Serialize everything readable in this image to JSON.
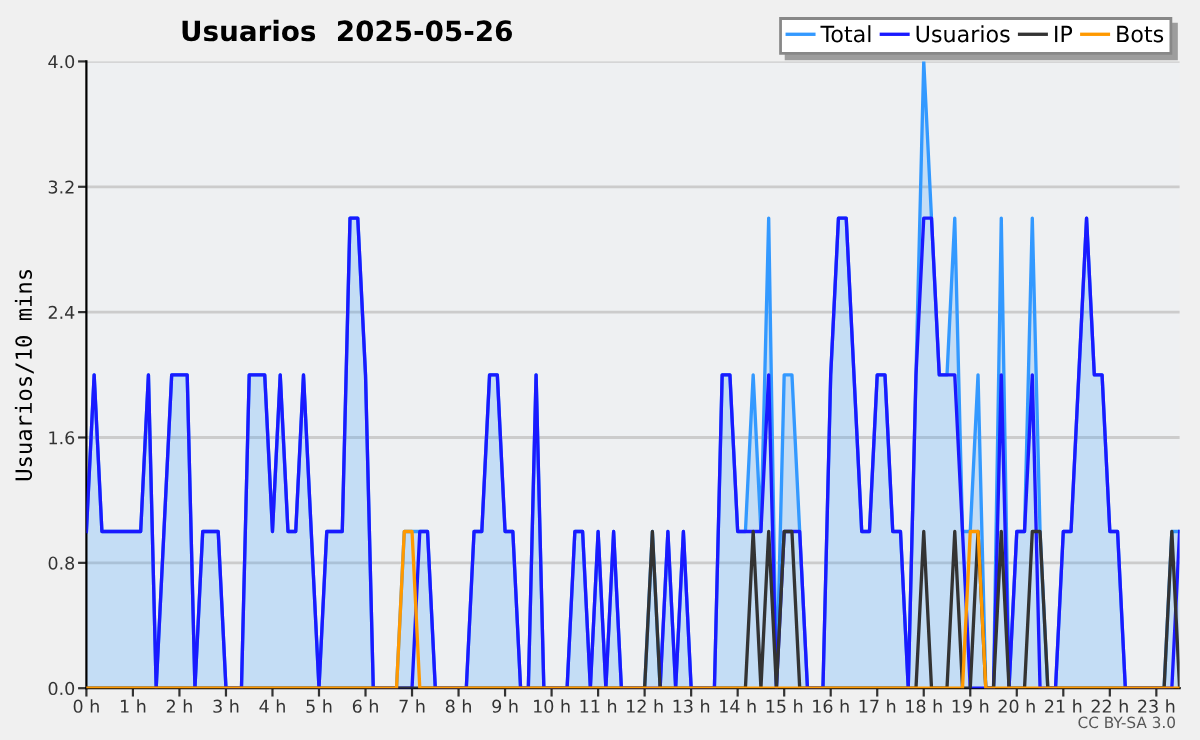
{
  "chart_data": {
    "type": "line",
    "title": "Usuarios  2025-05-26",
    "ylabel": "Usuarios/10 mins",
    "x": [
      0,
      0.1667,
      0.3333,
      0.5,
      0.6667,
      0.8333,
      1,
      1.1667,
      1.3333,
      1.5,
      1.6667,
      1.8333,
      2,
      2.1667,
      2.3333,
      2.5,
      2.6667,
      2.8333,
      3,
      3.1667,
      3.3333,
      3.5,
      3.6667,
      3.8333,
      4,
      4.1667,
      4.3333,
      4.5,
      4.6667,
      4.8333,
      5,
      5.1667,
      5.3333,
      5.5,
      5.6667,
      5.8333,
      6,
      6.1667,
      6.3333,
      6.5,
      6.6667,
      6.8333,
      7,
      7.1667,
      7.3333,
      7.5,
      7.6667,
      7.8333,
      8,
      8.1667,
      8.3333,
      8.5,
      8.6667,
      8.8333,
      9,
      9.1667,
      9.3333,
      9.5,
      9.6667,
      9.8333,
      10,
      10.1667,
      10.3333,
      10.5,
      10.6667,
      10.8333,
      11,
      11.1667,
      11.3333,
      11.5,
      11.6667,
      11.8333,
      12,
      12.1667,
      12.3333,
      12.5,
      12.6667,
      12.8333,
      13,
      13.1667,
      13.3333,
      13.5,
      13.6667,
      13.8333,
      14,
      14.1667,
      14.3333,
      14.5,
      14.6667,
      14.8333,
      15,
      15.1667,
      15.3333,
      15.5,
      15.6667,
      15.8333,
      16,
      16.1667,
      16.3333,
      16.5,
      16.6667,
      16.8333,
      17,
      17.1667,
      17.3333,
      17.5,
      17.6667,
      17.8333,
      18,
      18.1667,
      18.3333,
      18.5,
      18.6667,
      18.8333,
      19,
      19.1667,
      19.3333,
      19.5,
      19.6667,
      19.8333,
      20,
      20.1667,
      20.3333,
      20.5,
      20.6667,
      20.8333,
      21,
      21.1667,
      21.3333,
      21.5,
      21.6667,
      21.8333,
      22,
      22.1667,
      22.3333,
      22.5,
      22.6667,
      22.8333,
      23,
      23.1667,
      23.3333,
      23.5
    ],
    "series": [
      {
        "name": "Total",
        "type": "area",
        "color": "#3399ff",
        "values": [
          1,
          2,
          1,
          1,
          1,
          1,
          1,
          1,
          2,
          0,
          1,
          2,
          2,
          2,
          0,
          1,
          1,
          1,
          0,
          0,
          0,
          2,
          2,
          2,
          1,
          2,
          1,
          1,
          2,
          1,
          0,
          1,
          1,
          1,
          3,
          3,
          2,
          0,
          0,
          0,
          0,
          1,
          1,
          1,
          1,
          0,
          0,
          0,
          0,
          0,
          1,
          1,
          2,
          2,
          1,
          1,
          0,
          0,
          2,
          0,
          0,
          0,
          0,
          1,
          1,
          0,
          1,
          0,
          1,
          0,
          0,
          0,
          0,
          1,
          0,
          1,
          0,
          1,
          0,
          0,
          0,
          0,
          2,
          2,
          1,
          1,
          2,
          1,
          3,
          0,
          2,
          2,
          1,
          0,
          0,
          0,
          2,
          3,
          3,
          2,
          1,
          1,
          2,
          2,
          1,
          1,
          0,
          2,
          4,
          3,
          2,
          2,
          3,
          1,
          1,
          2,
          0,
          0,
          3,
          0,
          1,
          1,
          3,
          1,
          0,
          0,
          1,
          1,
          2,
          3,
          2,
          2,
          1,
          1,
          0,
          0,
          0,
          0,
          0,
          0,
          1,
          1
        ]
      },
      {
        "name": "Usuarios",
        "color": "#1a1aff",
        "values": [
          1,
          2,
          1,
          1,
          1,
          1,
          1,
          1,
          2,
          0,
          1,
          2,
          2,
          2,
          0,
          1,
          1,
          1,
          0,
          0,
          0,
          2,
          2,
          2,
          1,
          2,
          1,
          1,
          2,
          1,
          0,
          1,
          1,
          1,
          3,
          3,
          2,
          0,
          0,
          0,
          0,
          0,
          0,
          1,
          1,
          0,
          0,
          0,
          0,
          0,
          1,
          1,
          2,
          2,
          1,
          1,
          0,
          0,
          2,
          0,
          0,
          0,
          0,
          1,
          1,
          0,
          1,
          0,
          1,
          0,
          0,
          0,
          0,
          0,
          0,
          1,
          0,
          1,
          0,
          0,
          0,
          0,
          2,
          2,
          1,
          1,
          1,
          1,
          2,
          0,
          1,
          1,
          1,
          0,
          0,
          0,
          2,
          3,
          3,
          2,
          1,
          1,
          2,
          2,
          1,
          1,
          0,
          2,
          3,
          3,
          2,
          2,
          2,
          1,
          0,
          0,
          0,
          0,
          2,
          0,
          1,
          1,
          2,
          0,
          0,
          0,
          1,
          1,
          2,
          3,
          2,
          2,
          1,
          1,
          0,
          0,
          0,
          0,
          0,
          0,
          0,
          1
        ]
      },
      {
        "name": "IP",
        "color": "#333333",
        "values": [
          0,
          0,
          0,
          0,
          0,
          0,
          0,
          0,
          0,
          0,
          0,
          0,
          0,
          0,
          0,
          0,
          0,
          0,
          0,
          0,
          0,
          0,
          0,
          0,
          0,
          0,
          0,
          0,
          0,
          0,
          0,
          0,
          0,
          0,
          0,
          0,
          0,
          0,
          0,
          0,
          0,
          0,
          0,
          0,
          0,
          0,
          0,
          0,
          0,
          0,
          0,
          0,
          0,
          0,
          0,
          0,
          0,
          0,
          0,
          0,
          0,
          0,
          0,
          0,
          0,
          0,
          0,
          0,
          0,
          0,
          0,
          0,
          0,
          1,
          0,
          0,
          0,
          0,
          0,
          0,
          0,
          0,
          0,
          0,
          0,
          0,
          1,
          0,
          1,
          0,
          1,
          1,
          0,
          0,
          0,
          0,
          0,
          0,
          0,
          0,
          0,
          0,
          0,
          0,
          0,
          0,
          0,
          0,
          1,
          0,
          0,
          0,
          1,
          0,
          0,
          1,
          0,
          0,
          1,
          0,
          0,
          0,
          1,
          1,
          0,
          0,
          0,
          0,
          0,
          0,
          0,
          0,
          0,
          0,
          0,
          0,
          0,
          0,
          0,
          0,
          1,
          0
        ]
      },
      {
        "name": "Bots",
        "color": "#ff9900",
        "values": [
          0,
          0,
          0,
          0,
          0,
          0,
          0,
          0,
          0,
          0,
          0,
          0,
          0,
          0,
          0,
          0,
          0,
          0,
          0,
          0,
          0,
          0,
          0,
          0,
          0,
          0,
          0,
          0,
          0,
          0,
          0,
          0,
          0,
          0,
          0,
          0,
          0,
          0,
          0,
          0,
          0,
          1,
          1,
          0,
          0,
          0,
          0,
          0,
          0,
          0,
          0,
          0,
          0,
          0,
          0,
          0,
          0,
          0,
          0,
          0,
          0,
          0,
          0,
          0,
          0,
          0,
          0,
          0,
          0,
          0,
          0,
          0,
          0,
          0,
          0,
          0,
          0,
          0,
          0,
          0,
          0,
          0,
          0,
          0,
          0,
          0,
          0,
          0,
          0,
          0,
          0,
          0,
          0,
          0,
          0,
          0,
          0,
          0,
          0,
          0,
          0,
          0,
          0,
          0,
          0,
          0,
          0,
          0,
          0,
          0,
          0,
          0,
          0,
          0,
          1,
          1,
          0,
          0,
          0,
          0,
          0,
          0,
          0,
          0,
          0,
          0,
          0,
          0,
          0,
          0,
          0,
          0,
          0,
          0,
          0,
          0,
          0,
          0,
          0,
          0,
          0,
          0
        ]
      }
    ],
    "xlim": [
      0,
      23.5
    ],
    "xticks": [
      {
        "value": 0,
        "label": "0 h"
      },
      {
        "value": 1,
        "label": "1 h"
      },
      {
        "value": 2,
        "label": "2 h"
      },
      {
        "value": 3,
        "label": "3 h"
      },
      {
        "value": 4,
        "label": "4 h"
      },
      {
        "value": 5,
        "label": "5 h"
      },
      {
        "value": 6,
        "label": "6 h"
      },
      {
        "value": 7,
        "label": "7 h"
      },
      {
        "value": 8,
        "label": "8 h"
      },
      {
        "value": 9,
        "label": "9 h"
      },
      {
        "value": 10,
        "label": "10 h"
      },
      {
        "value": 11,
        "label": "11 h"
      },
      {
        "value": 12,
        "label": "12 h"
      },
      {
        "value": 13,
        "label": "13 h"
      },
      {
        "value": 14,
        "label": "14 h"
      },
      {
        "value": 15,
        "label": "15 h"
      },
      {
        "value": 16,
        "label": "16 h"
      },
      {
        "value": 17,
        "label": "17 h"
      },
      {
        "value": 18,
        "label": "18 h"
      },
      {
        "value": 19,
        "label": "19 h"
      },
      {
        "value": 20,
        "label": "20 h"
      },
      {
        "value": 21,
        "label": "21 h"
      },
      {
        "value": 22,
        "label": "22 h"
      },
      {
        "value": 23,
        "label": "23 h"
      }
    ],
    "ylim": [
      0,
      4
    ],
    "yticks": [
      {
        "value": 0,
        "label": "0.0"
      },
      {
        "value": 0.8,
        "label": "0.8"
      },
      {
        "value": 1.6,
        "label": "1.6"
      },
      {
        "value": 2.4,
        "label": "2.4"
      },
      {
        "value": 3.2,
        "label": "3.2"
      },
      {
        "value": 4,
        "label": "4.0"
      }
    ],
    "grid": "y",
    "legend": "top right",
    "marker": "none",
    "line_style": "solid",
    "annotations": [
      "CC BY-SA 3.0"
    ]
  }
}
